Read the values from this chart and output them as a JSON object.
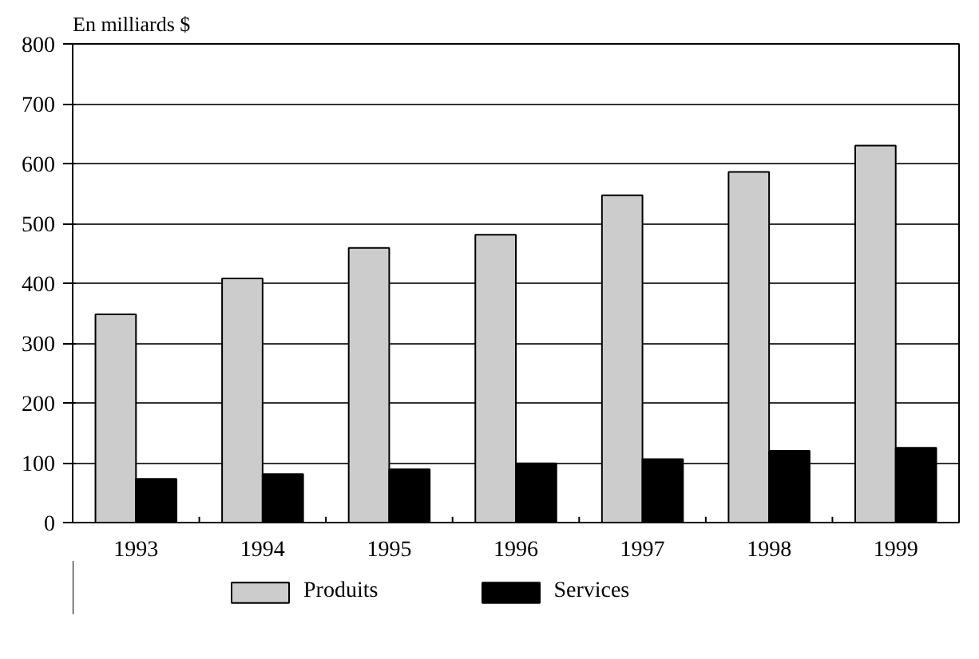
{
  "chart_data": {
    "type": "bar",
    "ylabel": "En milliards $",
    "categories": [
      "1993",
      "1994",
      "1995",
      "1996",
      "1997",
      "1998",
      "1999"
    ],
    "series": [
      {
        "name": "Produits",
        "color": "#cccccc",
        "values": [
          348,
          408,
          459,
          481,
          547,
          586,
          630
        ]
      },
      {
        "name": "Services",
        "color": "#000000",
        "values": [
          73,
          81,
          89,
          99,
          106,
          120,
          125
        ]
      }
    ],
    "ylim": [
      0,
      800
    ],
    "yticks": [
      0,
      100,
      200,
      300,
      400,
      500,
      600,
      700,
      800
    ],
    "grid": "y",
    "legend": "bottom"
  }
}
